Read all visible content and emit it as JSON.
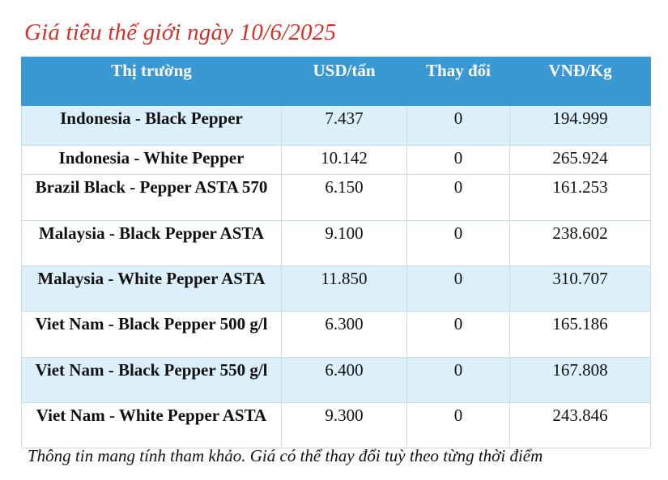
{
  "title": "Giá tiêu thế giới ngày 10/6/2025",
  "table": {
    "headers": [
      "Thị trường",
      "USD/tấn",
      "Thay đổi",
      "VNĐ/Kg"
    ],
    "rows": [
      {
        "market": "Indonesia - Black Pepper",
        "usd": "7.437",
        "change": "0",
        "vnd": "194.999"
      },
      {
        "market": "Indonesia - White Pepper",
        "usd": "10.142",
        "change": "0",
        "vnd": "265.924"
      },
      {
        "market": "Brazil Black - Pepper ASTA 570",
        "usd": "6.150",
        "change": "0",
        "vnd": "161.253"
      },
      {
        "market": "Malaysia - Black Pepper ASTA",
        "usd": "9.100",
        "change": "0",
        "vnd": "238.602"
      },
      {
        "market": "Malaysia - White Pepper ASTA",
        "usd": "11.850",
        "change": "0",
        "vnd": "310.707"
      },
      {
        "market": "Viet Nam - Black Pepper 500 g/l",
        "usd": "6.300",
        "change": "0",
        "vnd": "165.186"
      },
      {
        "market": "Viet Nam - Black Pepper 550 g/l",
        "usd": "6.400",
        "change": "0",
        "vnd": "167.808"
      },
      {
        "market": "Viet Nam - White Pepper ASTA",
        "usd": "9.300",
        "change": "0",
        "vnd": "243.846"
      }
    ]
  },
  "note": "Thông tin mang tính tham khảo. Giá có thể thay đổi tuỳ theo từng thời điểm",
  "colors": {
    "title": "#d6302b",
    "header_bg": "#3a98d3",
    "row_alt_bg": "#dcf0fb",
    "change_text": "#2a9fd6"
  }
}
